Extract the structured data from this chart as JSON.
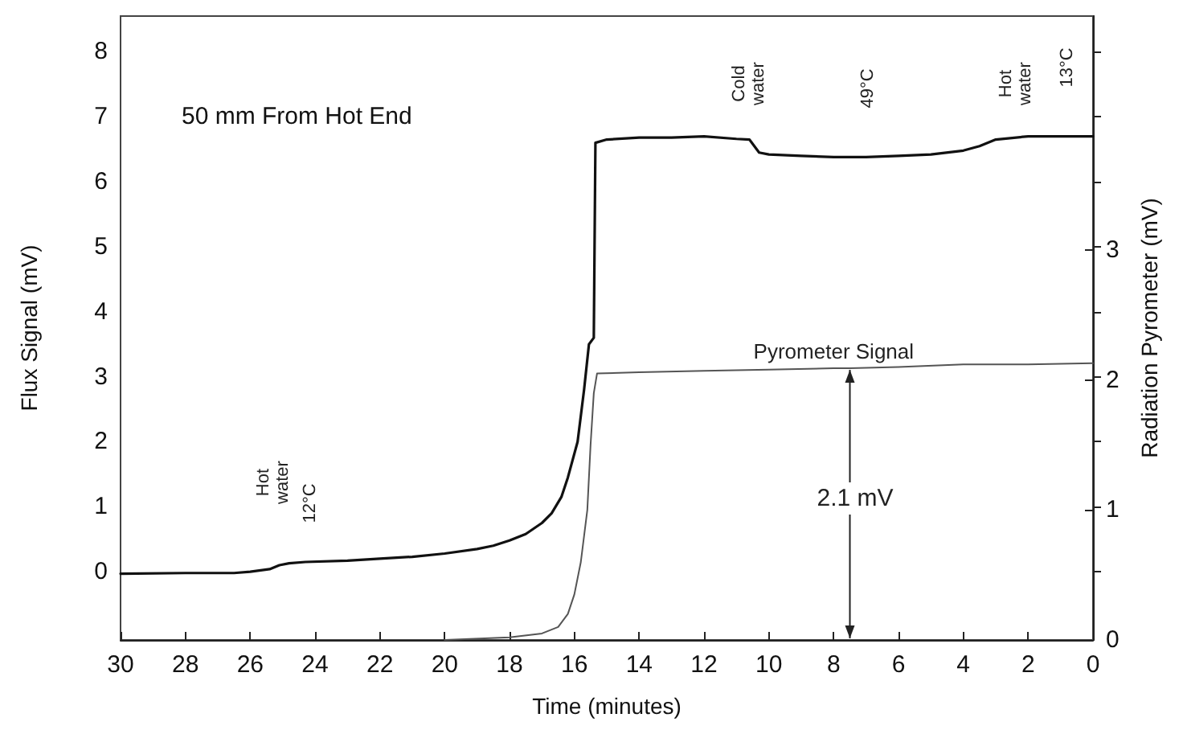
{
  "chart_data": {
    "type": "line",
    "title": "50 mm From Hot End",
    "xlabel": "Time (minutes)",
    "ylabel": "Flux Signal (mV)",
    "y2label": "Radiation Pyrometer (mV)",
    "xlim": [
      30,
      0
    ],
    "xticks": [
      30,
      28,
      26,
      24,
      22,
      20,
      18,
      16,
      14,
      12,
      10,
      8,
      6,
      4,
      2,
      0
    ],
    "ylim": [
      -1.05,
      8.55
    ],
    "yticks": [
      0,
      1,
      2,
      3,
      4,
      5,
      6,
      7,
      8
    ],
    "y2lim": [
      0,
      4.8
    ],
    "y2ticks": [
      0,
      1,
      2,
      3
    ],
    "grid": false,
    "legend": false,
    "marker": "none",
    "line_style": "solid",
    "series": [
      {
        "color": "#111111",
        "x": [
          30,
          28,
          26.5,
          26,
          25.4,
          25.1,
          24.8,
          24.3,
          23,
          22,
          21,
          20,
          19,
          18.5,
          18,
          17.5,
          17,
          16.7,
          16.4,
          16.2,
          15.9,
          15.7,
          15.55,
          15.4,
          15.35,
          15,
          14,
          13,
          12,
          11,
          10.6,
          10.3,
          10,
          9,
          8,
          7,
          6,
          5,
          4,
          3.5,
          3,
          2,
          1,
          0
        ],
        "values": [
          -0.03,
          -0.02,
          -0.02,
          0.0,
          0.04,
          0.1,
          0.13,
          0.15,
          0.17,
          0.2,
          0.23,
          0.28,
          0.35,
          0.4,
          0.48,
          0.58,
          0.75,
          0.9,
          1.15,
          1.45,
          2.0,
          2.8,
          3.5,
          3.6,
          6.6,
          6.65,
          6.68,
          6.68,
          6.7,
          6.66,
          6.65,
          6.45,
          6.42,
          6.4,
          6.38,
          6.38,
          6.4,
          6.42,
          6.48,
          6.55,
          6.65,
          6.7,
          6.7,
          6.7
        ]
      },
      {
        "name": "Pyrometer Signal",
        "color": "#555555",
        "axis": "y2",
        "x": [
          20,
          18,
          17,
          16.5,
          16.2,
          16,
          15.8,
          15.6,
          15.5,
          15.4,
          15.3,
          14,
          12,
          10,
          8,
          7.5,
          6,
          4,
          2,
          0
        ],
        "values": [
          0.0,
          0.02,
          0.05,
          0.1,
          0.2,
          0.35,
          0.6,
          1.0,
          1.5,
          1.9,
          2.05,
          2.06,
          2.07,
          2.08,
          2.09,
          2.09,
          2.1,
          2.12,
          2.12,
          2.13
        ]
      }
    ],
    "annotations": [
      "Hot water",
      "12°C",
      "Cold water",
      "49°C",
      "Hot water",
      "13°C",
      "2.1 mV"
    ]
  }
}
